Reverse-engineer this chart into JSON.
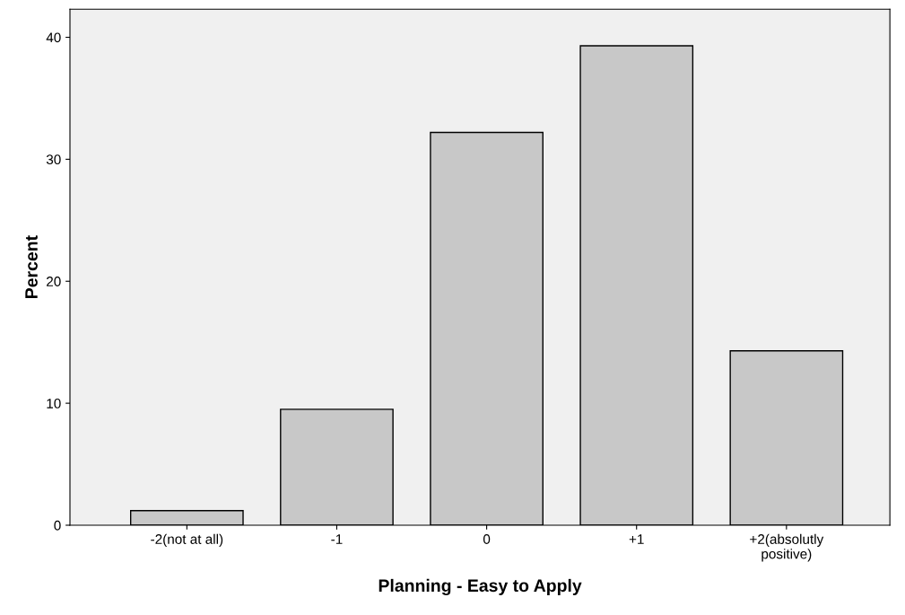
{
  "chart_data": {
    "type": "bar",
    "xlabel": "Planning - Easy to Apply",
    "ylabel": "Percent",
    "categories": [
      "-2(not at all)",
      "-1",
      "0",
      "+1",
      "+2(absolutly\npositive)"
    ],
    "values": [
      1.2,
      9.5,
      32.2,
      39.3,
      14.3
    ],
    "color": "#c8c8c8",
    "ylim": [
      0,
      42.3
    ],
    "yticks": [
      0,
      10,
      20,
      30,
      40
    ],
    "grid": false
  }
}
